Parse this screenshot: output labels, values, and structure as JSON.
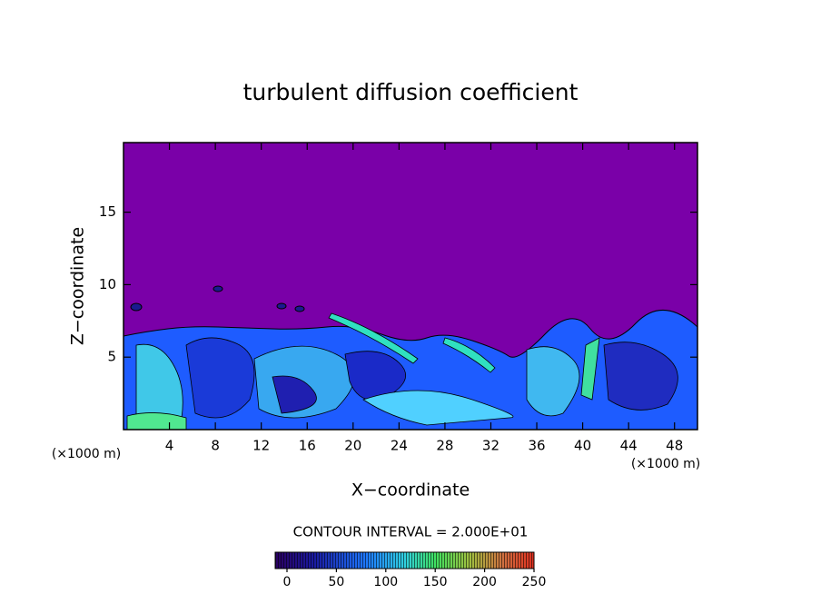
{
  "chart_data": {
    "type": "contour",
    "title": "turbulent diffusion coefficient",
    "x_label": "X−coordinate",
    "y_label": "Z−coordinate",
    "x_unit_labels": [
      "(×1000 m)",
      "(×1000 m)"
    ],
    "xlim": [
      0,
      50
    ],
    "xticks": [
      4,
      8,
      12,
      16,
      20,
      24,
      28,
      32,
      36,
      40,
      44,
      48
    ],
    "ylim": [
      0,
      19.8
    ],
    "yticks": [
      5,
      10,
      15
    ],
    "contour_interval_label": "CONTOUR INTERVAL = 2.000E+01",
    "colorbar": {
      "lim": [
        0,
        250
      ],
      "ticks": [
        0,
        50,
        100,
        150,
        200,
        250
      ]
    }
  }
}
